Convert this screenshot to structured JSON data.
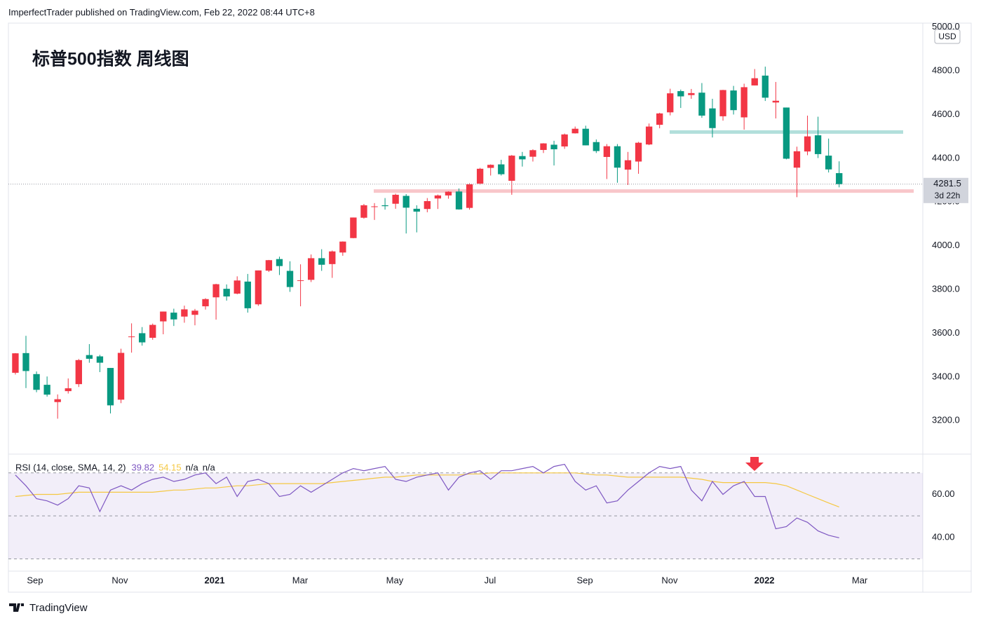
{
  "header": "ImperfectTrader published on TradingView.com, Feb 22, 2022 08:44 UTC+8",
  "footer": "TradingView",
  "chart_data": [
    {
      "type": "candlestick",
      "title": "标普500指数 周线图",
      "currency": "USD",
      "countdown": "3d 22h",
      "up_color": "#f23645",
      "down_color": "#089981",
      "open": [
        3419,
        3509,
        3413,
        3364,
        3285,
        3335,
        3367,
        3500,
        3494,
        3441,
        3296,
        3584,
        3600,
        3579,
        3654,
        3694,
        3676,
        3684,
        3723,
        3764,
        3803,
        3781,
        3836,
        3732,
        3886,
        3939,
        3885,
        3842,
        3844,
        3943,
        3916,
        3969,
        4035,
        4128,
        4179,
        4185,
        4192,
        4228,
        4169,
        4168,
        4216,
        4230,
        4248,
        4173,
        4284,
        4356,
        4372,
        4297,
        4410,
        4407,
        4438,
        4462,
        4454,
        4514,
        4535,
        4474,
        4406,
        4455,
        4348,
        4385,
        4463,
        4553,
        4610,
        4707,
        4689,
        4700,
        4628,
        4592,
        4710,
        4587,
        4733,
        4778,
        4655,
        4632,
        4357,
        4431,
        4505,
        4412,
        4332
      ],
      "high": [
        3509,
        3588,
        3425,
        3402,
        3320,
        3393,
        3482,
        3550,
        3501,
        3441,
        3529,
        3645,
        3628,
        3644,
        3699,
        3712,
        3726,
        3711,
        3760,
        3826,
        3823,
        3860,
        3871,
        3887,
        3935,
        3950,
        3929,
        3915,
        3960,
        3984,
        3978,
        4020,
        4129,
        4191,
        4195,
        4218,
        4238,
        4236,
        4185,
        4218,
        4234,
        4249,
        4262,
        4286,
        4356,
        4372,
        4393,
        4415,
        4429,
        4441,
        4469,
        4480,
        4513,
        4545,
        4549,
        4486,
        4465,
        4465,
        4429,
        4475,
        4559,
        4608,
        4718,
        4714,
        4717,
        4744,
        4672,
        4713,
        4731,
        4741,
        4808,
        4819,
        4749,
        4632,
        4453,
        4595,
        4590,
        4490,
        4386
      ],
      "low": [
        3411,
        3349,
        3330,
        3310,
        3209,
        3324,
        3354,
        3465,
        3422,
        3233,
        3280,
        3511,
        3543,
        3570,
        3595,
        3633,
        3648,
        3636,
        3708,
        3662,
        3749,
        3778,
        3694,
        3725,
        3880,
        3866,
        3789,
        3723,
        3834,
        3885,
        3853,
        3954,
        4034,
        4124,
        4118,
        4165,
        4169,
        4056,
        4061,
        4153,
        4168,
        4215,
        4165,
        4165,
        4279,
        4321,
        4321,
        4233,
        4362,
        4385,
        4424,
        4367,
        4443,
        4513,
        4459,
        4424,
        4305,
        4288,
        4278,
        4329,
        4460,
        4537,
        4596,
        4630,
        4672,
        4585,
        4495,
        4572,
        4600,
        4531,
        4733,
        4662,
        4582,
        4395,
        4222,
        4414,
        4401,
        4335,
        4267
      ],
      "close": [
        3508,
        3427,
        3341,
        3319,
        3298,
        3348,
        3477,
        3483,
        3465,
        3270,
        3510,
        3585,
        3558,
        3638,
        3699,
        3663,
        3709,
        3703,
        3756,
        3824,
        3768,
        3841,
        3714,
        3887,
        3934,
        3907,
        3811,
        3842,
        3943,
        3913,
        3974,
        4019,
        4129,
        4185,
        4180,
        4181,
        4233,
        4174,
        4156,
        4204,
        4230,
        4247,
        4166,
        4281,
        4352,
        4370,
        4327,
        4412,
        4395,
        4437,
        4468,
        4441,
        4509,
        4535,
        4459,
        4433,
        4455,
        4357,
        4391,
        4471,
        4545,
        4605,
        4697,
        4683,
        4698,
        4595,
        4538,
        4712,
        4620,
        4725,
        4766,
        4677,
        4663,
        4398,
        4432,
        4500,
        4419,
        4349,
        4281.5
      ],
      "levels": [
        {
          "value": 4520,
          "x": [
            61.95,
            84.06
          ],
          "color": "#b2dfdb"
        },
        {
          "value": 4250,
          "x": [
            33.93,
            85.06
          ],
          "color": "#f8c6ca"
        }
      ],
      "xlim": [
        -0.66,
        85.92
      ],
      "xticks": [
        {
          "value": 1.86,
          "label": "Sep"
        },
        {
          "value": 9.89,
          "label": "Nov"
        },
        {
          "value": 18.86,
          "label": "2021"
        },
        {
          "value": 26.96,
          "label": "Mar"
        },
        {
          "value": 35.92,
          "label": "May"
        },
        {
          "value": 44.95,
          "label": "Jul"
        },
        {
          "value": 53.92,
          "label": "Sep"
        },
        {
          "value": 61.95,
          "label": "Nov"
        },
        {
          "value": 70.92,
          "label": "2022"
        },
        {
          "value": 79.95,
          "label": "Mar"
        }
      ],
      "ylim": [
        3047,
        5018
      ],
      "yticks": [
        {
          "value": 3200,
          "label": "3200.0"
        },
        {
          "value": 3400,
          "label": "3400.0"
        },
        {
          "value": 3600,
          "label": "3600.0"
        },
        {
          "value": 3800,
          "label": "3800.0"
        },
        {
          "value": 4000,
          "label": "4000.0"
        },
        {
          "value": 4200,
          "label": "4200.0"
        },
        {
          "value": 4400,
          "label": "4400.0"
        },
        {
          "value": 4600,
          "label": "4600.0"
        },
        {
          "value": 4800,
          "label": "4800.0"
        },
        {
          "value": 5000,
          "label": "5000.0"
        }
      ]
    },
    {
      "type": "line",
      "label": "RSI (14, close, SMA, 14, 2)",
      "legend_extra": [
        "n/a",
        "n/a"
      ],
      "series": [
        {
          "color": "#7e57c2",
          "values": [
            69,
            64,
            58,
            57,
            55,
            58,
            64,
            63,
            52,
            62,
            64,
            62,
            65,
            67,
            68,
            66,
            67,
            69,
            70,
            65,
            68,
            59,
            66,
            67,
            65,
            59,
            60,
            64,
            61,
            64,
            67,
            70,
            72,
            71,
            72,
            73,
            67,
            66,
            68,
            69,
            70,
            62,
            68,
            70,
            71,
            67,
            71,
            71,
            72,
            73,
            70,
            73,
            74,
            66,
            62,
            64,
            56,
            57,
            62,
            66,
            70,
            73,
            72,
            73,
            62,
            57,
            66,
            60,
            64,
            66,
            59,
            59,
            44,
            45,
            49,
            47,
            43,
            41,
            39.82
          ]
        },
        {
          "color": "#f5c842",
          "values": [
            59,
            59.5,
            60,
            60,
            60,
            60.5,
            61,
            61,
            61,
            61,
            61,
            61,
            61,
            61,
            61.5,
            62,
            62,
            62.5,
            63,
            63,
            63.5,
            64,
            64,
            64.5,
            65,
            65,
            65,
            65,
            65,
            65,
            65.5,
            66,
            66.5,
            67,
            67.5,
            68,
            68,
            68.5,
            69,
            69,
            69,
            69,
            69,
            69.5,
            69.5,
            70,
            70,
            70,
            70,
            70,
            70,
            70,
            70,
            70,
            69.5,
            69,
            69,
            68.5,
            68,
            68,
            68,
            68,
            68,
            68,
            67.5,
            67,
            66,
            65.5,
            65.5,
            65.5,
            65.5,
            65.5,
            65,
            64,
            62,
            60,
            58,
            56,
            54.15
          ]
        }
      ],
      "levels": [
        30,
        50,
        70
      ],
      "band_color": "#7e57c2",
      "ylim": [
        24.3,
        78.4
      ],
      "yticks": [
        {
          "value": 40,
          "label": "40.00"
        },
        {
          "value": 60,
          "label": "60.00"
        }
      ]
    }
  ]
}
